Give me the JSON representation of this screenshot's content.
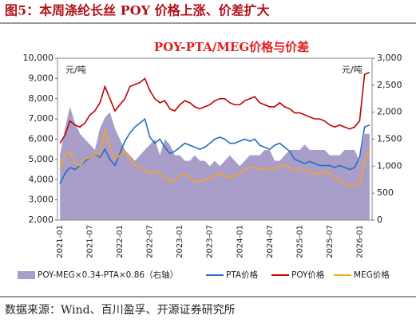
{
  "header": {
    "title": "图5：本周涤纶长丝 POY 价格上涨、价差扩大"
  },
  "chart_data": {
    "type": "line",
    "title": "POY-PTA/MEG价格与价差",
    "y_unit": "元/吨",
    "y2_unit": "元/吨",
    "categories": [
      "2021-01",
      null,
      null,
      null,
      null,
      null,
      "2021-07",
      null,
      null,
      null,
      null,
      null,
      "2022-01",
      null,
      null,
      null,
      null,
      null,
      "2022-07",
      null,
      null,
      null,
      null,
      null,
      "2023-01",
      null,
      null,
      null,
      null,
      null,
      "2023-07",
      null,
      null,
      null,
      null,
      null,
      "2024-01",
      null,
      null,
      null,
      null,
      null,
      "2024-07",
      null,
      null,
      null,
      null,
      null,
      "2025-01",
      null,
      null,
      null,
      null,
      null,
      "2025-07",
      null,
      null,
      null,
      null,
      null,
      "2026-01",
      null,
      null
    ],
    "ylim": [
      2000,
      10000
    ],
    "yticks": [
      {
        "value": 2000,
        "label": "2,000"
      },
      {
        "value": 3000,
        "label": "3,000"
      },
      {
        "value": 4000,
        "label": "4,000"
      },
      {
        "value": 5000,
        "label": "5,000"
      },
      {
        "value": 6000,
        "label": "6,000"
      },
      {
        "value": 7000,
        "label": "7,000"
      },
      {
        "value": 8000,
        "label": "8,000"
      },
      {
        "value": 9000,
        "label": "9,000"
      },
      {
        "value": 10000,
        "label": "10,000"
      }
    ],
    "y2lim": [
      0,
      3000
    ],
    "y2ticks": [
      0,
      500,
      {
        "value": 1000,
        "label": "1,000"
      },
      {
        "value": 1500,
        "label": "1,500"
      },
      {
        "value": 2000,
        "label": "2,000"
      },
      {
        "value": 2500,
        "label": "2,500"
      },
      {
        "value": 3000,
        "label": "3,000"
      }
    ],
    "series": [
      {
        "name": "POY-MEG×0.34-PTA×0.86（右轴）",
        "color": "#a99dc9",
        "axis": "y2",
        "kind": "area",
        "values": [
          1200,
          1700,
          2100,
          1800,
          1600,
          1500,
          1400,
          1300,
          1700,
          1900,
          2000,
          1700,
          1500,
          1300,
          1200,
          1100,
          1200,
          1300,
          1400,
          1500,
          1200,
          1500,
          1400,
          1200,
          1200,
          1100,
          1100,
          1200,
          1100,
          1100,
          1000,
          1100,
          1000,
          1100,
          1200,
          1100,
          1000,
          1100,
          1200,
          1200,
          1200,
          1300,
          1300,
          1100,
          1100,
          1200,
          1300,
          1300,
          1300,
          1400,
          1300,
          1300,
          1300,
          1300,
          1200,
          1200,
          1200,
          1300,
          1300,
          1300,
          1100,
          1600,
          1600
        ]
      },
      {
        "name": "PTA价格",
        "color": "#1f6fc0",
        "kind": "line",
        "values": [
          3800,
          4300,
          4600,
          4500,
          4700,
          4900,
          5100,
          5300,
          5100,
          5500,
          5000,
          4700,
          5300,
          5900,
          6300,
          6600,
          6800,
          7000,
          6100,
          5800,
          6000,
          5600,
          5300,
          5400,
          5600,
          5800,
          5700,
          5600,
          5500,
          5600,
          5800,
          6000,
          6100,
          6000,
          5800,
          5800,
          5900,
          6000,
          5900,
          6000,
          5700,
          5600,
          5500,
          5700,
          5800,
          5600,
          5400,
          5000,
          4900,
          4800,
          4900,
          4800,
          4700,
          4700,
          4700,
          4600,
          4700,
          4600,
          4500,
          4600,
          5100,
          6600,
          6700
        ]
      },
      {
        "name": "POY价格",
        "color": "#c00000",
        "kind": "line",
        "values": [
          5800,
          6200,
          6900,
          6700,
          6600,
          6800,
          7200,
          7400,
          7800,
          8600,
          8000,
          7400,
          7700,
          8000,
          8600,
          8700,
          8800,
          9000,
          8400,
          8000,
          7800,
          7900,
          7500,
          7400,
          7700,
          7900,
          7800,
          7600,
          7500,
          7600,
          7700,
          7900,
          8000,
          8000,
          7800,
          7700,
          7700,
          7900,
          8000,
          8100,
          7800,
          7700,
          7600,
          7600,
          7800,
          7600,
          7500,
          7300,
          7300,
          7200,
          7100,
          7000,
          7000,
          6900,
          6700,
          6600,
          6700,
          6600,
          6500,
          6600,
          6900,
          9200,
          9300
        ]
      },
      {
        "name": "MEG价格",
        "color": "#f5a623",
        "kind": "line",
        "values": [
          4500,
          5200,
          5400,
          4800,
          4700,
          5000,
          5100,
          5300,
          5200,
          6500,
          5600,
          5000,
          5200,
          5400,
          5000,
          4700,
          4600,
          4500,
          4300,
          4400,
          4300,
          4100,
          3900,
          4000,
          4200,
          4300,
          4100,
          3900,
          3900,
          4000,
          4100,
          4200,
          4300,
          4200,
          4100,
          4200,
          4300,
          4500,
          4600,
          4600,
          4500,
          4500,
          4600,
          4500,
          4700,
          4700,
          4600,
          4400,
          4500,
          4500,
          4400,
          4300,
          4300,
          4400,
          4300,
          4100,
          4000,
          3800,
          3700,
          3700,
          3800,
          4900,
          5500
        ]
      }
    ]
  },
  "source": "数据来源：Wind、百川盈孚、开源证券研究所"
}
